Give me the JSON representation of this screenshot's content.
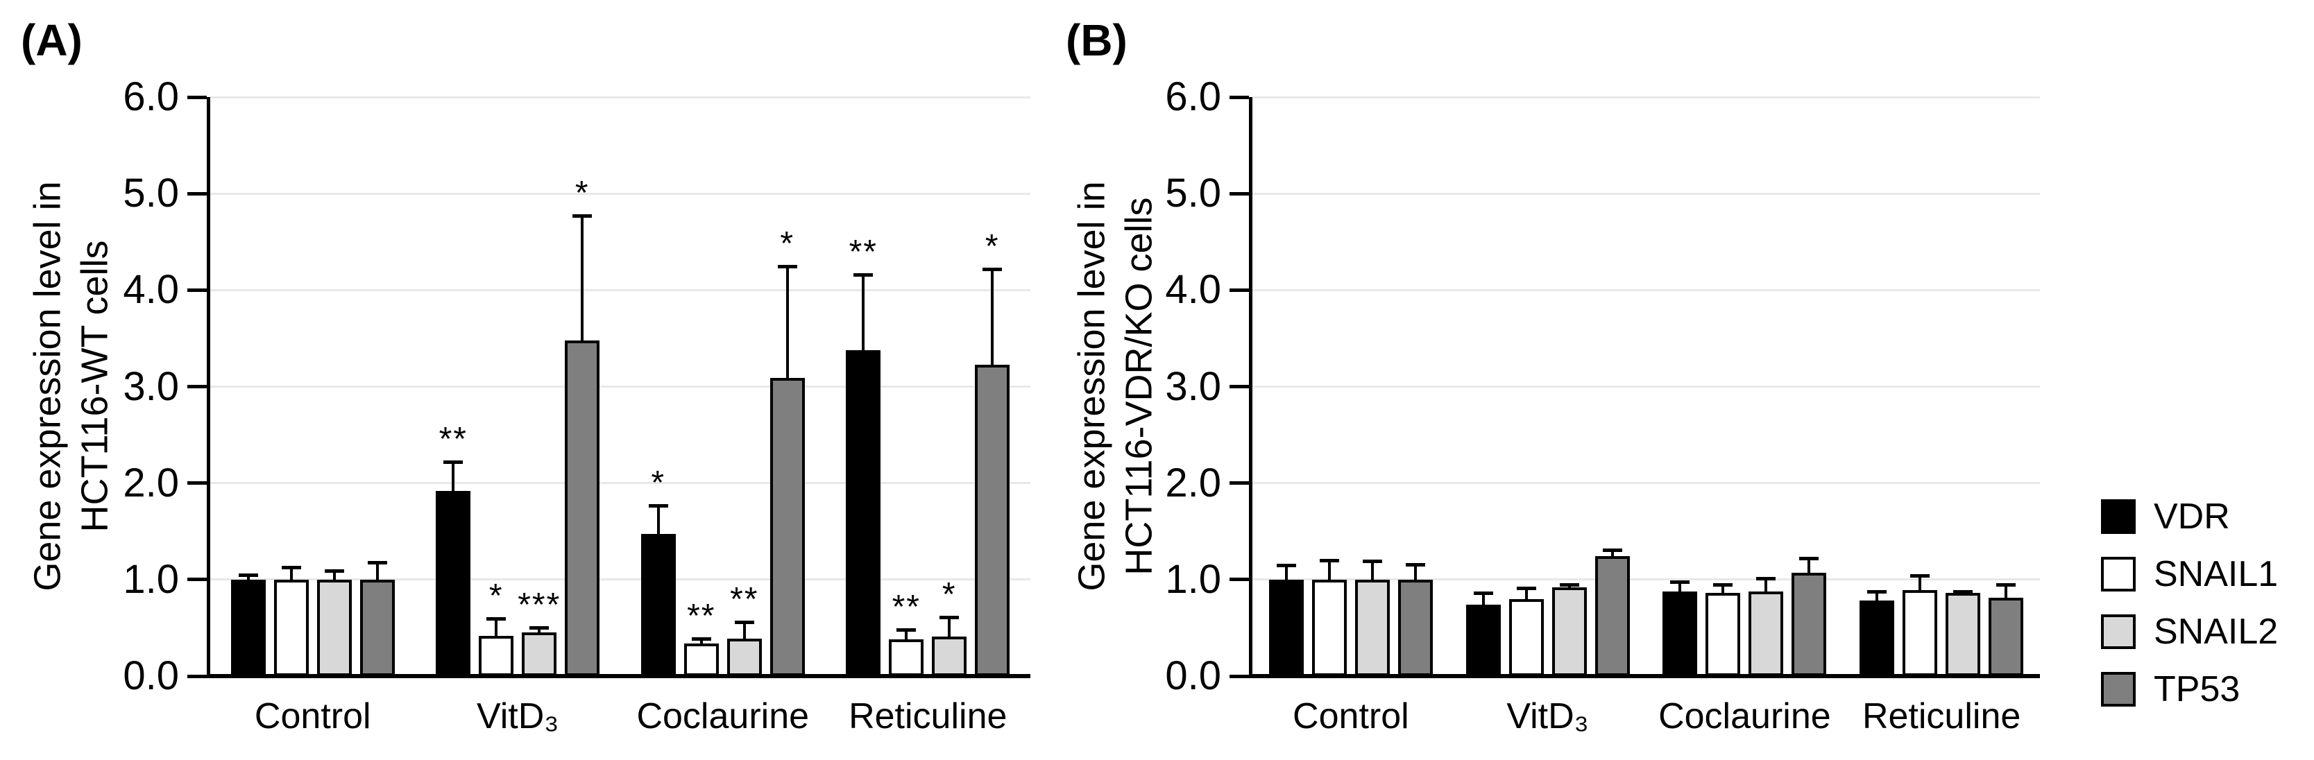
{
  "figure": {
    "background": "#ffffff",
    "axis_color": "#000000",
    "gridline_color": "#e8e8e8",
    "panels": [
      {
        "label": "(A)",
        "y_title_line1": "Gene expression level in",
        "y_title_line2": "HCT116-WT cells"
      },
      {
        "label": "(B)",
        "y_title_line1": "Gene expression level in",
        "y_title_line2": "HCT116-VDR/KO cells"
      }
    ],
    "legend": {
      "items": [
        {
          "label": "VDR",
          "color": "#000000"
        },
        {
          "label": "SNAIL1",
          "color": "#ffffff"
        },
        {
          "label": "SNAIL2",
          "color": "#d8d8d8"
        },
        {
          "label": "TP53",
          "color": "#7f7f7f"
        }
      ]
    }
  },
  "chart_data": [
    {
      "type": "bar",
      "title": "",
      "xlabel": "",
      "ylabel": "Gene expression level in HCT116-WT cells",
      "ylim": [
        0,
        6
      ],
      "y_ticks": [
        "0.0",
        "1.0",
        "2.0",
        "3.0",
        "4.0",
        "5.0",
        "6.0"
      ],
      "grid": true,
      "error_bars": "upper",
      "legend_position": "shared-right",
      "categories": [
        "Control",
        "VitD₃",
        "Coclaurine",
        "Reticuline"
      ],
      "series": [
        {
          "name": "VDR",
          "color": "#000000",
          "values": [
            1.0,
            1.92,
            1.47,
            3.38
          ],
          "errors": [
            0.05,
            0.3,
            0.3,
            0.78
          ],
          "sig": [
            "",
            "**",
            "*",
            "**"
          ]
        },
        {
          "name": "SNAIL1",
          "color": "#ffffff",
          "values": [
            1.0,
            0.42,
            0.34,
            0.38
          ],
          "errors": [
            0.13,
            0.18,
            0.05,
            0.1
          ],
          "sig": [
            "",
            "*",
            "**",
            "**"
          ]
        },
        {
          "name": "SNAIL2",
          "color": "#d8d8d8",
          "values": [
            1.0,
            0.45,
            0.39,
            0.41
          ],
          "errors": [
            0.09,
            0.05,
            0.17,
            0.2
          ],
          "sig": [
            "",
            "***",
            "**",
            "*"
          ]
        },
        {
          "name": "TP53",
          "color": "#7f7f7f",
          "values": [
            1.0,
            3.48,
            3.09,
            3.23
          ],
          "errors": [
            0.18,
            1.29,
            1.16,
            0.99
          ],
          "sig": [
            "",
            "*",
            "*",
            "*"
          ]
        }
      ]
    },
    {
      "type": "bar",
      "title": "",
      "xlabel": "",
      "ylabel": "Gene expression level in HCT116-VDR/KO cells",
      "ylim": [
        0,
        6
      ],
      "y_ticks": [
        "0.0",
        "1.0",
        "2.0",
        "3.0",
        "4.0",
        "5.0",
        "6.0"
      ],
      "grid": true,
      "error_bars": "upper",
      "legend_position": "shared-right",
      "categories": [
        "Control",
        "VitD₃",
        "Coclaurine",
        "Reticuline"
      ],
      "series": [
        {
          "name": "VDR",
          "color": "#000000",
          "values": [
            1.0,
            0.74,
            0.88,
            0.78
          ],
          "errors": [
            0.15,
            0.12,
            0.1,
            0.1
          ],
          "sig": [
            "",
            "",
            "",
            ""
          ]
        },
        {
          "name": "SNAIL1",
          "color": "#ffffff",
          "values": [
            1.0,
            0.8,
            0.86,
            0.89
          ],
          "errors": [
            0.2,
            0.11,
            0.09,
            0.15
          ],
          "sig": [
            "",
            "",
            "",
            ""
          ]
        },
        {
          "name": "SNAIL2",
          "color": "#d8d8d8",
          "values": [
            1.0,
            0.92,
            0.88,
            0.86
          ],
          "errors": [
            0.19,
            0.03,
            0.13,
            0.02
          ],
          "sig": [
            "",
            "",
            "",
            ""
          ]
        },
        {
          "name": "TP53",
          "color": "#7f7f7f",
          "values": [
            1.0,
            1.24,
            1.07,
            0.81
          ],
          "errors": [
            0.16,
            0.07,
            0.15,
            0.14
          ],
          "sig": [
            "",
            "",
            "",
            ""
          ]
        }
      ]
    }
  ]
}
